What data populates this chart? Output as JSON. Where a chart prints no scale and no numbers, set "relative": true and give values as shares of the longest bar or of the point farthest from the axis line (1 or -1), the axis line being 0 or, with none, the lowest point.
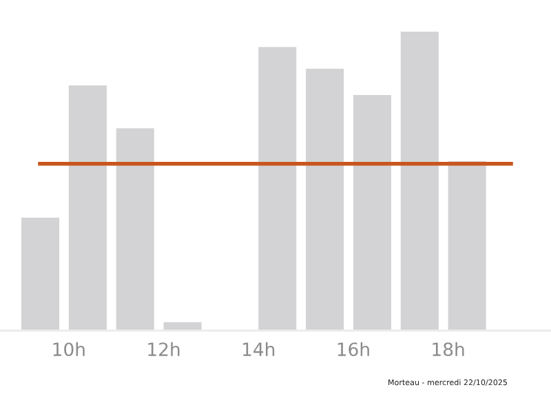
{
  "chart_data": {
    "type": "bar",
    "relative": true,
    "x": [
      9.4,
      10.4,
      11.4,
      12.4,
      13.4,
      14.4,
      15.4,
      16.4,
      17.4,
      18.4
    ],
    "values": [
      0.378,
      0.82,
      0.677,
      0.028,
      0,
      0.949,
      0.876,
      0.788,
      1,
      0.567
    ],
    "color": "#d3d3d5",
    "xlim": [
      8.55,
      20.17
    ],
    "xticks": [
      {
        "value": 10,
        "label": "10h"
      },
      {
        "value": 12,
        "label": "12h"
      },
      {
        "value": 14,
        "label": "14h"
      },
      {
        "value": 16,
        "label": "16h"
      },
      {
        "value": 18,
        "label": "18h"
      }
    ],
    "ref_lines": [
      {
        "axis": "y",
        "value": 0.558,
        "color": "#c8561e"
      }
    ],
    "grid": false,
    "legend": false,
    "annotations": [
      "Morteau - mercredi 22/10/2025"
    ]
  }
}
